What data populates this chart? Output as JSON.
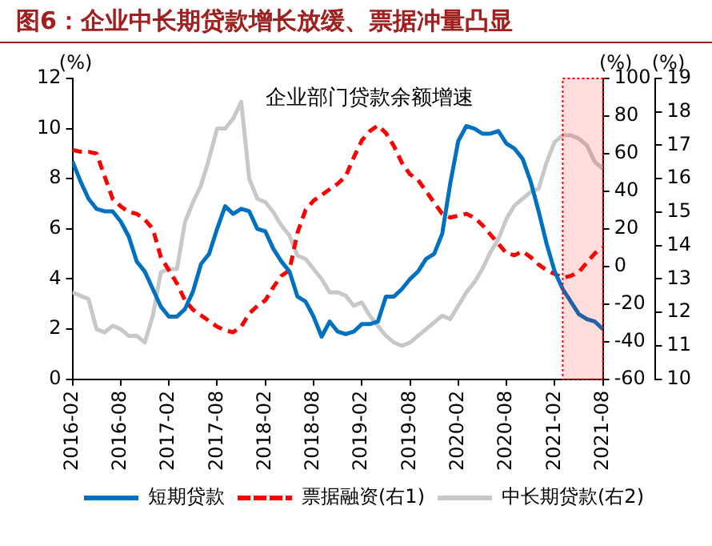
{
  "chart_data": {
    "type": "line",
    "title": "图6：企业中长期贷款增长放缓、票据冲量凸显",
    "subtitle": "企业部门贷款余额增速",
    "ylabel": "(%)",
    "y2label": "(%)",
    "y3label": "(%)",
    "x": [
      "2016-02",
      "2016-03",
      "2016-04",
      "2016-05",
      "2016-06",
      "2016-07",
      "2016-08",
      "2016-09",
      "2016-10",
      "2016-11",
      "2016-12",
      "2017-01",
      "2017-02",
      "2017-03",
      "2017-04",
      "2017-05",
      "2017-06",
      "2017-07",
      "2017-08",
      "2017-09",
      "2017-10",
      "2017-11",
      "2017-12",
      "2018-01",
      "2018-02",
      "2018-03",
      "2018-04",
      "2018-05",
      "2018-06",
      "2018-07",
      "2018-08",
      "2018-09",
      "2018-10",
      "2018-11",
      "2018-12",
      "2019-01",
      "2019-02",
      "2019-03",
      "2019-04",
      "2019-05",
      "2019-06",
      "2019-07",
      "2019-08",
      "2019-09",
      "2019-10",
      "2019-11",
      "2019-12",
      "2020-01",
      "2020-02",
      "2020-03",
      "2020-04",
      "2020-05",
      "2020-06",
      "2020-07",
      "2020-08",
      "2020-09",
      "2020-10",
      "2020-11",
      "2020-12",
      "2021-01",
      "2021-02",
      "2021-03",
      "2021-04",
      "2021-05",
      "2021-06",
      "2021-07",
      "2021-08"
    ],
    "xlim": [
      "2016-02",
      "2021-08"
    ],
    "xticks": [
      "2016-02",
      "2016-08",
      "2017-02",
      "2017-08",
      "2018-02",
      "2018-08",
      "2019-02",
      "2019-08",
      "2020-02",
      "2020-08",
      "2021-02",
      "2021-08"
    ],
    "series": [
      {
        "name": "短期贷款",
        "color": "#0070c0",
        "line_style": "solid",
        "values": [
          8.7,
          7.9,
          7.2,
          6.8,
          6.7,
          6.7,
          6.3,
          5.7,
          4.7,
          4.3,
          3.6,
          2.9,
          2.5,
          2.5,
          2.8,
          3.5,
          4.6,
          5.0,
          6.0,
          6.9,
          6.6,
          6.8,
          6.7,
          6.0,
          5.9,
          5.2,
          4.7,
          4.3,
          3.3,
          3.1,
          2.5,
          1.7,
          2.3,
          1.9,
          1.8,
          1.9,
          2.2,
          2.2,
          2.3,
          3.3,
          3.3,
          3.6,
          4.0,
          4.3,
          4.8,
          5.0,
          5.8,
          7.8,
          9.5,
          10.1,
          10.0,
          9.8,
          9.8,
          9.9,
          9.4,
          9.2,
          8.8,
          7.9,
          6.7,
          5.4,
          4.3,
          3.6,
          3.1,
          2.6,
          2.4,
          2.3,
          2.0
        ]
      },
      {
        "name": "票据融资(右1)",
        "color": "#ff0000",
        "line_style": "dashed",
        "axis": "y2",
        "values": [
          62,
          61,
          61,
          60,
          48,
          36,
          32,
          29,
          28,
          25,
          20,
          5,
          -2,
          -9,
          -18,
          -23,
          -26,
          -29,
          -32,
          -34,
          -35,
          -32,
          -25,
          -21,
          -18,
          -11,
          -5,
          -2,
          18,
          30,
          35,
          38,
          41,
          44,
          48,
          58,
          67,
          72,
          75,
          71,
          64,
          55,
          49,
          46,
          40,
          34,
          28,
          26,
          27,
          28,
          26,
          22,
          17,
          12,
          7,
          6,
          8,
          5,
          1,
          -2,
          -4,
          -6,
          -5,
          -3,
          2,
          7,
          10
        ]
      },
      {
        "name": "中长期贷款(右2)",
        "color": "#c8c8c8",
        "line_style": "solid",
        "axis": "y3",
        "values": [
          12.6,
          12.5,
          12.4,
          11.5,
          11.4,
          11.6,
          11.5,
          11.3,
          11.3,
          11.1,
          11.9,
          13.2,
          13.3,
          13.3,
          14.7,
          15.3,
          15.8,
          16.6,
          17.5,
          17.5,
          17.8,
          18.3,
          16.0,
          15.4,
          15.3,
          15.0,
          14.6,
          14.3,
          13.7,
          13.6,
          13.3,
          13.0,
          12.6,
          12.6,
          12.5,
          12.2,
          12.3,
          11.9,
          11.6,
          11.3,
          11.1,
          11.0,
          11.1,
          11.3,
          11.5,
          11.7,
          11.9,
          11.8,
          12.2,
          12.6,
          12.9,
          13.3,
          13.8,
          14.2,
          14.8,
          15.2,
          15.4,
          15.6,
          15.7,
          16.5,
          17.1,
          17.3,
          17.3,
          17.2,
          17.0,
          16.5,
          16.3
        ]
      }
    ],
    "ylim": [
      0,
      12
    ],
    "yticks": [
      0,
      2,
      4,
      6,
      8,
      10,
      12
    ],
    "y2lim": [
      -60,
      100
    ],
    "y2ticks": [
      -60,
      -40,
      -20,
      0,
      20,
      40,
      60,
      80,
      100
    ],
    "y3lim": [
      10,
      19
    ],
    "y3ticks": [
      10,
      11,
      12,
      13,
      14,
      15,
      16,
      17,
      18,
      19
    ],
    "bands": [
      {
        "axis": "x",
        "from": "2021-03",
        "to": "2021-08",
        "color": "#ff0000"
      }
    ],
    "grid": false,
    "legend": "bottom",
    "marker": "none"
  }
}
